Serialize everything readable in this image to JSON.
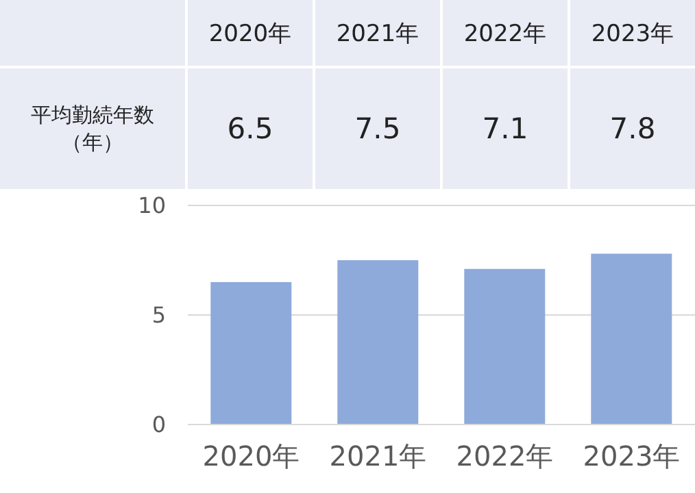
{
  "chart_data": {
    "type": "bar",
    "categories": [
      "2020年",
      "2021年",
      "2022年",
      "2023年"
    ],
    "series": [
      {
        "name": "平均勤続年数（年）",
        "color": "#8eaadb",
        "values": [
          6.5,
          7.5,
          7.1,
          7.8
        ],
        "value_labels": [
          "6.5",
          "7.5",
          "7.1",
          "7.8"
        ]
      }
    ],
    "ylim": [
      0,
      10
    ],
    "yticks": [
      0,
      5,
      10
    ],
    "grid": "y"
  }
}
